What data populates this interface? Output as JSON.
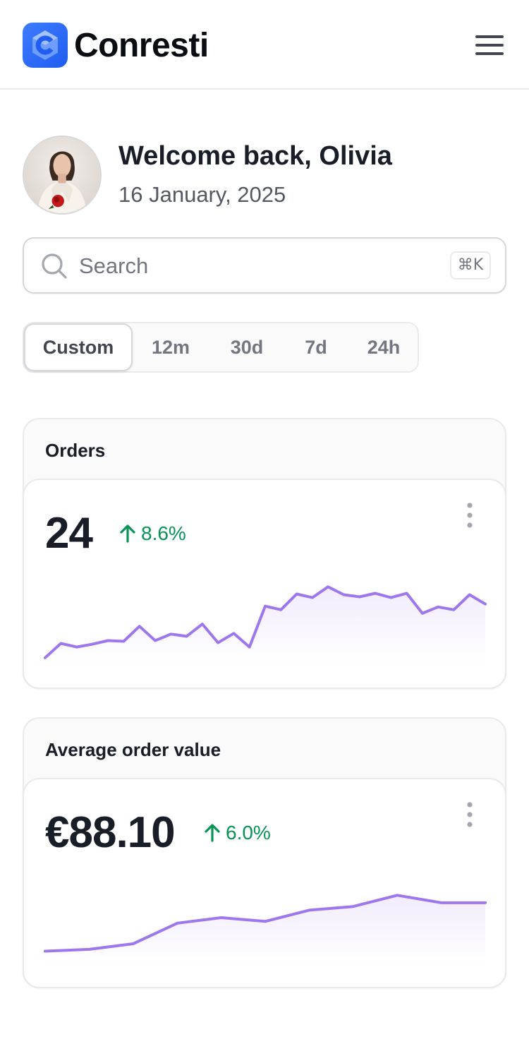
{
  "header": {
    "brand": "Conresti",
    "menu_icon": "menu-icon",
    "brand_color": "#2e6bf5"
  },
  "welcome": {
    "title": "Welcome back, Olivia",
    "date": "16 January, 2025"
  },
  "search": {
    "placeholder": "Search",
    "value": "",
    "shortcut": "⌘K"
  },
  "segments": {
    "items": [
      "Custom",
      "12m",
      "30d",
      "7d",
      "24h"
    ],
    "selected": "Custom"
  },
  "cards": [
    {
      "title": "Orders",
      "value": "24",
      "trend": "8.6%",
      "trend_direction": "up"
    },
    {
      "title": "Average order value",
      "value": "€88.10",
      "trend": "6.0%",
      "trend_direction": "up"
    }
  ],
  "chart_data": [
    {
      "type": "area",
      "series": [
        {
          "values": [
            10,
            30,
            25,
            29,
            34,
            33,
            54,
            34,
            43,
            40,
            57,
            31,
            44,
            25,
            82,
            77,
            99,
            94,
            109,
            98,
            95,
            100,
            94,
            100,
            72,
            81,
            77,
            98,
            85
          ]
        }
      ],
      "ylim": [
        0,
        130
      ],
      "grid": false,
      "color": "#9e77ed"
    },
    {
      "type": "area",
      "series": [
        {
          "values": [
            14,
            16,
            22,
            44,
            50,
            46,
            58,
            62,
            74,
            66,
            66
          ]
        }
      ],
      "ylim": [
        0,
        100
      ],
      "grid": false,
      "color": "#9e77ed"
    }
  ],
  "colors": {
    "accent": "#9e77ed",
    "positive": "#079455"
  }
}
